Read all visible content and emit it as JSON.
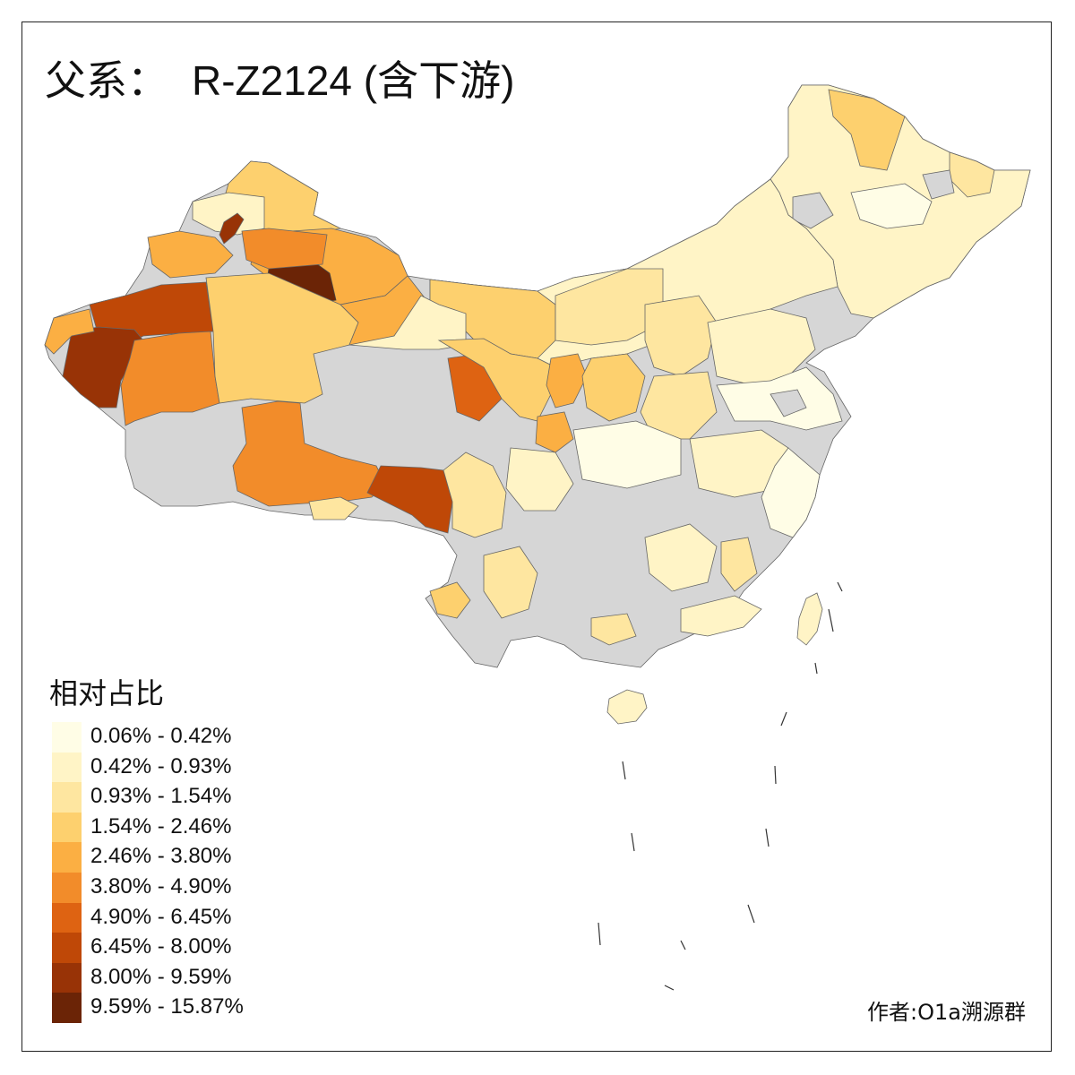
{
  "title": {
    "prefix": "父系：",
    "code": "R-Z2124 (含下游)"
  },
  "legend": {
    "title": "相对占比",
    "bins": [
      {
        "label": "0.06% - 0.42%",
        "color": "#fffde6"
      },
      {
        "label": "0.42% - 0.93%",
        "color": "#fff4c6"
      },
      {
        "label": "0.93% - 1.54%",
        "color": "#fee6a0"
      },
      {
        "label": "1.54% - 2.46%",
        "color": "#fdd06e"
      },
      {
        "label": "2.46% - 3.80%",
        "color": "#fbaf43"
      },
      {
        "label": "3.80% - 4.90%",
        "color": "#f28c2a"
      },
      {
        "label": "4.90% - 6.45%",
        "color": "#de6312"
      },
      {
        "label": "6.45% - 8.00%",
        "color": "#bf4807"
      },
      {
        "label": "8.00% - 9.59%",
        "color": "#983306"
      },
      {
        "label": "9.59% - 15.87%",
        "color": "#6b2406"
      }
    ],
    "no_data_color": "#d6d6d6"
  },
  "credit": "作者:O1a溯源群"
}
